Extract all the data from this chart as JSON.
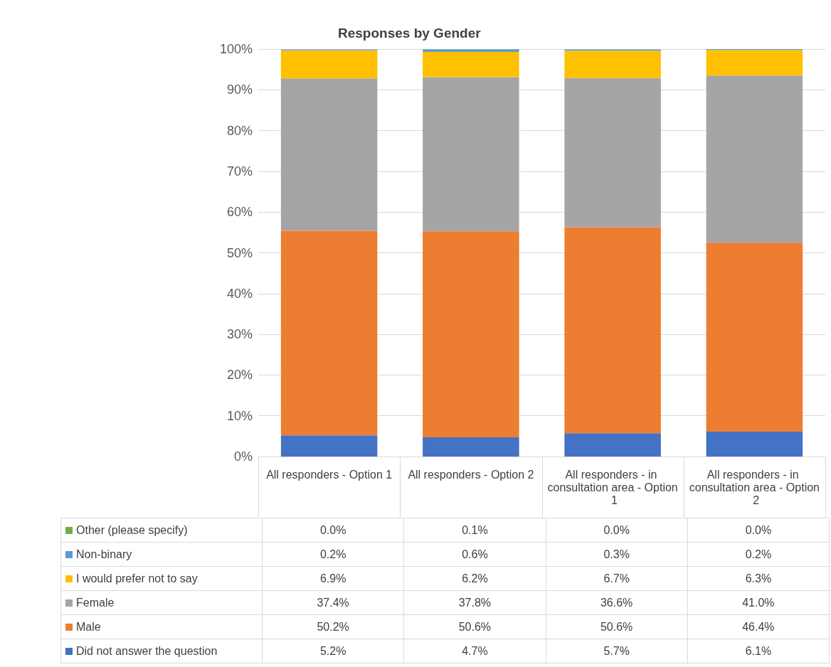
{
  "chart_data": {
    "type": "bar",
    "title": "Responses by Gender",
    "stacked": true,
    "categories": [
      "All responders - Option 1",
      "All responders - Option 2",
      "All responders - in consultation area - Option 1",
      "All responders - in consultation area - Option 2"
    ],
    "series": [
      {
        "name": "Did not answer the question",
        "color": "#4472c4",
        "values": [
          5.2,
          4.7,
          5.7,
          6.1
        ],
        "value_labels": [
          "5.2%",
          "4.7%",
          "5.7%",
          "6.1%"
        ]
      },
      {
        "name": "Male",
        "color": "#ed7d31",
        "values": [
          50.2,
          50.6,
          50.6,
          46.4
        ],
        "value_labels": [
          "50.2%",
          "50.6%",
          "50.6%",
          "46.4%"
        ]
      },
      {
        "name": "Female",
        "color": "#a5a5a5",
        "values": [
          37.4,
          37.8,
          36.6,
          41.0
        ],
        "value_labels": [
          "37.4%",
          "37.8%",
          "36.6%",
          "41.0%"
        ]
      },
      {
        "name": "I would prefer not to say",
        "color": "#ffc000",
        "values": [
          6.9,
          6.2,
          6.7,
          6.3
        ],
        "value_labels": [
          "6.9%",
          "6.2%",
          "6.7%",
          "6.3%"
        ]
      },
      {
        "name": "Non-binary",
        "color": "#5b9bd5",
        "values": [
          0.2,
          0.6,
          0.3,
          0.2
        ],
        "value_labels": [
          "0.2%",
          "0.6%",
          "0.3%",
          "0.2%"
        ]
      },
      {
        "name": "Other (please specify)",
        "color": "#70ad47",
        "values": [
          0.0,
          0.1,
          0.0,
          0.0
        ],
        "value_labels": [
          "0.0%",
          "0.1%",
          "0.0%",
          "0.0%"
        ]
      }
    ],
    "ylim": [
      0,
      100
    ],
    "yticks": [
      {
        "value": 0,
        "label": "0%"
      },
      {
        "value": 10,
        "label": "10%"
      },
      {
        "value": 20,
        "label": "20%"
      },
      {
        "value": 30,
        "label": "30%"
      },
      {
        "value": 40,
        "label": "40%"
      },
      {
        "value": 50,
        "label": "50%"
      },
      {
        "value": 60,
        "label": "60%"
      },
      {
        "value": 70,
        "label": "70%"
      },
      {
        "value": 80,
        "label": "80%"
      },
      {
        "value": 90,
        "label": "90%"
      },
      {
        "value": 100,
        "label": "100%"
      }
    ],
    "grid": "y",
    "legend": "bottom"
  }
}
